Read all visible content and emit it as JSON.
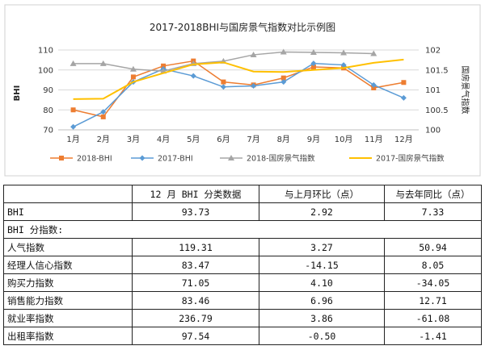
{
  "chart_data": {
    "type": "line",
    "title": "2017-2018BHI与国房景气指数对比示例图",
    "categories": [
      "1月",
      "2月",
      "3月",
      "4月",
      "5月",
      "6月",
      "7月",
      "8月",
      "9月",
      "10月",
      "11月",
      "12月"
    ],
    "ylabel_left": "BHI",
    "ylabel_right": "国房景气指数",
    "ylim_left": [
      70,
      110
    ],
    "ylim_right": [
      100,
      102
    ],
    "yticks_left": [
      "70",
      "80",
      "90",
      "100",
      "110"
    ],
    "yticks_right": [
      "100",
      "100.5",
      "101",
      "101.5",
      "102"
    ],
    "grid": true,
    "legend_position": "bottom",
    "series": [
      {
        "name": "2018-BHI",
        "axis": "left",
        "color": "#ED7D31",
        "marker": "square",
        "values": [
          80,
          76.5,
          96.5,
          102,
          104.5,
          94,
          92.5,
          96,
          101.5,
          101,
          91,
          93.73
        ]
      },
      {
        "name": "2017-BHI",
        "axis": "left",
        "color": "#5B9BD5",
        "marker": "diamond",
        "values": [
          71.5,
          79,
          94,
          100.5,
          97,
          91.5,
          92,
          94,
          103.3,
          102.5,
          92.5,
          86
        ]
      },
      {
        "name": "2018-国房景气指数",
        "axis": "right",
        "color": "#A5A5A5",
        "marker": "triangle",
        "values": [
          101.66,
          101.66,
          101.52,
          101.47,
          101.66,
          101.72,
          101.88,
          101.95,
          101.94,
          101.93,
          101.91,
          null
        ]
      },
      {
        "name": "2017-国房景气指数",
        "axis": "right",
        "color": "#FFC000",
        "marker": "none",
        "values": [
          100.77,
          100.78,
          101.2,
          101.42,
          101.64,
          101.69,
          101.46,
          101.45,
          101.5,
          101.55,
          101.68,
          101.76
        ]
      }
    ]
  },
  "table": {
    "headers": [
      "",
      "12 月 BHI 分类数据",
      "与上月环比（点）",
      "与去年同比（点）"
    ],
    "bhi_row": {
      "label": "BHI",
      "value": "93.73",
      "mom": "2.92",
      "yoy": "7.33"
    },
    "section_label": "BHI 分指数:",
    "rows": [
      {
        "label": "人气指数",
        "value": "119.31",
        "mom": "3.27",
        "yoy": "50.94"
      },
      {
        "label": "经理人信心指数",
        "value": "83.47",
        "mom": "-14.15",
        "yoy": "8.05"
      },
      {
        "label": "购买力指数",
        "value": "71.05",
        "mom": "4.10",
        "yoy": "-34.05"
      },
      {
        "label": "销售能力指数",
        "value": "83.46",
        "mom": "6.96",
        "yoy": "12.71"
      },
      {
        "label": "就业率指数",
        "value": "236.79",
        "mom": "3.86",
        "yoy": "-61.08"
      },
      {
        "label": "出租率指数",
        "value": "97.54",
        "mom": "-0.50",
        "yoy": "-1.41"
      }
    ]
  }
}
